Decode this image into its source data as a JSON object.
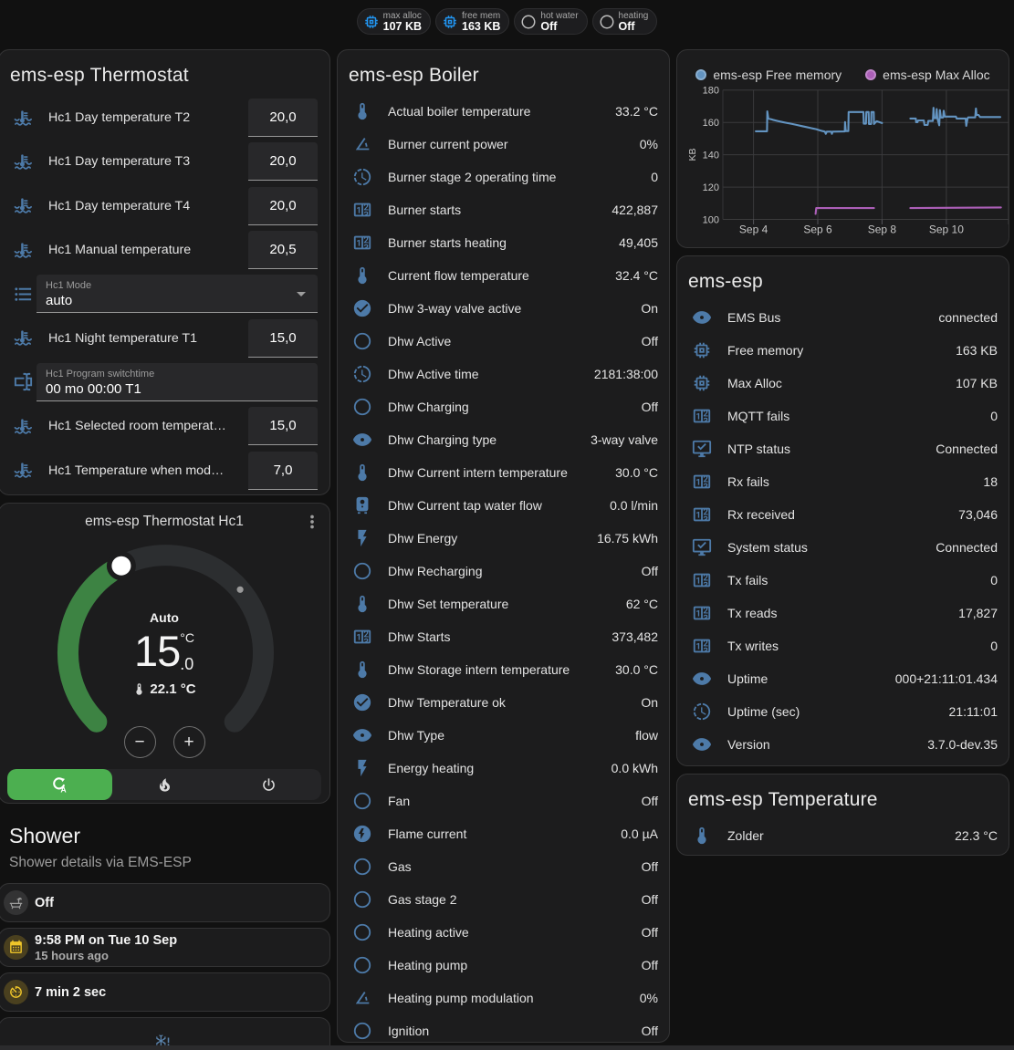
{
  "colors": {
    "page_bg": "#111111",
    "card_bg": "#1c1c1d",
    "icon_blue": "#4d7aa8",
    "badge_blue": "#2196f3",
    "amber": "#edc32b",
    "green_active": "#4caf50",
    "dial_green": "#3d8343",
    "dial_track": "#2c2e30",
    "line_blue": "#6394c1",
    "line_purple": "#ac5fb8"
  },
  "badges": [
    {
      "icon": "memory",
      "icon_color": "#2196f3",
      "label": "max alloc",
      "value": "107 KB"
    },
    {
      "icon": "memory",
      "icon_color": "#2196f3",
      "label": "free mem",
      "value": "163 KB"
    },
    {
      "icon": "circle-outline",
      "icon_color": "#bdbdbd",
      "label": "hot water",
      "value": "Off"
    },
    {
      "icon": "circle-outline",
      "icon_color": "#bdbdbd",
      "label": "heating",
      "value": "Off"
    }
  ],
  "thermostat_card": {
    "title": "ems-esp Thermostat",
    "rows": [
      {
        "type": "number",
        "icon": "thermometer-water",
        "name": "Hc1 Day temperature T2",
        "value": "20,0"
      },
      {
        "type": "number",
        "icon": "thermometer-water",
        "name": "Hc1 Day temperature T3",
        "value": "20,0"
      },
      {
        "type": "number",
        "icon": "thermometer-water",
        "name": "Hc1 Day temperature T4",
        "value": "20,0"
      },
      {
        "type": "number",
        "icon": "thermometer-water",
        "name": "Hc1 Manual temperature",
        "value": "20,5"
      },
      {
        "type": "select",
        "icon": "format-list-bulleted",
        "label": "Hc1 Mode",
        "value": "auto"
      },
      {
        "type": "number",
        "icon": "thermometer-water",
        "name": "Hc1 Night temperature T1",
        "value": "15,0"
      },
      {
        "type": "text",
        "icon": "form-textbox",
        "label": "Hc1 Program switchtime",
        "value": "00 mo 00:00 T1"
      },
      {
        "type": "number",
        "icon": "thermometer-water",
        "name": "Hc1 Selected room temperat…",
        "value": "15,0"
      },
      {
        "type": "number",
        "icon": "thermometer-water",
        "name": "Hc1 Temperature when mod…",
        "value": "7,0"
      }
    ]
  },
  "dial_card": {
    "title": "ems-esp Thermostat Hc1",
    "mode_label": "Auto",
    "target_int": "15",
    "target_frac": ".0",
    "unit": "°C",
    "current_label": "22.1 °C",
    "min": 5,
    "max": 30,
    "target": 15,
    "current": 22.1,
    "modes": [
      {
        "icon": "refresh-auto",
        "name": "auto",
        "active": true
      },
      {
        "icon": "fire",
        "name": "heat",
        "active": false
      },
      {
        "icon": "power",
        "name": "off",
        "active": false
      }
    ],
    "minus_label": "−",
    "plus_label": "+"
  },
  "shower_section": {
    "heading": "Shower",
    "subheading": "Shower details via EMS-ESP",
    "tiles": [
      {
        "icon": "bathtub",
        "icon_color": "#9e9e9e",
        "icon_bg": "rgba(158,158,158,0.18)",
        "primary": "Off"
      },
      {
        "icon": "calendar",
        "icon_color": "#f0c62a",
        "icon_bg": "rgba(240,198,42,0.22)",
        "primary": "9:58 PM on Tue 10 Sep",
        "secondary": "15 hours ago"
      },
      {
        "icon": "av-timer",
        "icon_color": "#f0c62a",
        "icon_bg": "rgba(240,198,42,0.22)",
        "primary": "7 min 2 sec"
      },
      {
        "icon": "snowflake-alert",
        "icon_color": "#5b84ad",
        "centered": true
      }
    ]
  },
  "boiler_card": {
    "title": "ems-esp Boiler",
    "rows": [
      {
        "icon": "thermometer",
        "name": "Actual boiler temperature",
        "value": "33.2 °C"
      },
      {
        "icon": "angle-acute",
        "name": "Burner current power",
        "value": "0%"
      },
      {
        "icon": "progress-clock",
        "name": "Burner stage 2 operating time",
        "value": "0"
      },
      {
        "icon": "counter",
        "name": "Burner starts",
        "value": "422,887"
      },
      {
        "icon": "counter",
        "name": "Burner starts heating",
        "value": "49,405"
      },
      {
        "icon": "thermometer",
        "name": "Current flow temperature",
        "value": "32.4 °C"
      },
      {
        "icon": "check-circle",
        "name": "Dhw 3-way valve active",
        "value": "On"
      },
      {
        "icon": "circle-outline",
        "name": "Dhw Active",
        "value": "Off"
      },
      {
        "icon": "progress-clock",
        "name": "Dhw Active time",
        "value": "2181:38:00"
      },
      {
        "icon": "circle-outline",
        "name": "Dhw Charging",
        "value": "Off"
      },
      {
        "icon": "eye",
        "name": "Dhw Charging type",
        "value": "3-way valve"
      },
      {
        "icon": "thermometer",
        "name": "Dhw Current intern temperature",
        "value": "30.0 °C"
      },
      {
        "icon": "water-boiler",
        "name": "Dhw Current tap water flow",
        "value": "0.0 l/min"
      },
      {
        "icon": "flash",
        "name": "Dhw Energy",
        "value": "16.75 kWh"
      },
      {
        "icon": "circle-outline",
        "name": "Dhw Recharging",
        "value": "Off"
      },
      {
        "icon": "thermometer",
        "name": "Dhw Set temperature",
        "value": "62 °C"
      },
      {
        "icon": "counter",
        "name": "Dhw Starts",
        "value": "373,482"
      },
      {
        "icon": "thermometer",
        "name": "Dhw Storage intern temperature",
        "value": "30.0 °C"
      },
      {
        "icon": "check-circle",
        "name": "Dhw Temperature ok",
        "value": "On"
      },
      {
        "icon": "eye",
        "name": "Dhw Type",
        "value": "flow"
      },
      {
        "icon": "flash",
        "name": "Energy heating",
        "value": "0.0 kWh"
      },
      {
        "icon": "circle-outline",
        "name": "Fan",
        "value": "Off"
      },
      {
        "icon": "flash-circle",
        "name": "Flame current",
        "value": "0.0 µA"
      },
      {
        "icon": "circle-outline",
        "name": "Gas",
        "value": "Off"
      },
      {
        "icon": "circle-outline",
        "name": "Gas stage 2",
        "value": "Off"
      },
      {
        "icon": "circle-outline",
        "name": "Heating active",
        "value": "Off"
      },
      {
        "icon": "circle-outline",
        "name": "Heating pump",
        "value": "Off"
      },
      {
        "icon": "angle-acute",
        "name": "Heating pump modulation",
        "value": "0%"
      },
      {
        "icon": "circle-outline",
        "name": "Ignition",
        "value": "Off"
      }
    ]
  },
  "system_card": {
    "title": "ems-esp",
    "rows": [
      {
        "icon": "eye",
        "name": "EMS Bus",
        "value": "connected"
      },
      {
        "icon": "memory",
        "name": "Free memory",
        "value": "163 KB"
      },
      {
        "icon": "memory",
        "name": "Max Alloc",
        "value": "107 KB"
      },
      {
        "icon": "counter",
        "name": "MQTT fails",
        "value": "0"
      },
      {
        "icon": "monitor-check",
        "name": "NTP status",
        "value": "Connected"
      },
      {
        "icon": "counter",
        "name": "Rx fails",
        "value": "18"
      },
      {
        "icon": "counter",
        "name": "Rx received",
        "value": "73,046"
      },
      {
        "icon": "monitor-check",
        "name": "System status",
        "value": "Connected"
      },
      {
        "icon": "counter",
        "name": "Tx fails",
        "value": "0"
      },
      {
        "icon": "counter",
        "name": "Tx reads",
        "value": "17,827"
      },
      {
        "icon": "counter",
        "name": "Tx writes",
        "value": "0"
      },
      {
        "icon": "eye",
        "name": "Uptime",
        "value": "000+21:11:01.434"
      },
      {
        "icon": "progress-clock",
        "name": "Uptime (sec)",
        "value": "21:11:01"
      },
      {
        "icon": "eye",
        "name": "Version",
        "value": "3.7.0-dev.35"
      }
    ]
  },
  "temperature_card": {
    "title": "ems-esp Temperature",
    "rows": [
      {
        "icon": "thermometer",
        "name": "Zolder",
        "value": "22.3 °C"
      }
    ]
  },
  "chart_data": {
    "type": "line",
    "title": "",
    "xlabel": "",
    "ylabel": "KB",
    "xlim": [
      3.0,
      11.9
    ],
    "ylim": [
      100,
      180
    ],
    "grid": true,
    "legend_position": "top",
    "xticks": [
      {
        "x": 4,
        "label": "Sep 4"
      },
      {
        "x": 6,
        "label": "Sep 6"
      },
      {
        "x": 8,
        "label": "Sep 8"
      },
      {
        "x": 10,
        "label": "Sep 10"
      }
    ],
    "yticks": [
      100,
      120,
      140,
      160,
      180
    ],
    "series": [
      {
        "name": "ems-esp Free memory",
        "color": "#6394c1",
        "points": [
          [
            4.07,
            154.5
          ],
          [
            4.42,
            154.5
          ],
          [
            4.43,
            166.8
          ],
          [
            4.46,
            162.4
          ],
          [
            4.6,
            161.6
          ],
          [
            4.75,
            160.9
          ],
          [
            4.9,
            160.2
          ],
          [
            5.05,
            159.6
          ],
          [
            5.2,
            159.0
          ],
          [
            5.35,
            158.4
          ],
          [
            5.5,
            157.7
          ],
          [
            5.65,
            157.1
          ],
          [
            5.8,
            156.4
          ],
          [
            5.95,
            155.8
          ],
          [
            6.05,
            155.2
          ],
          [
            6.15,
            154.6
          ],
          [
            6.22,
            154.3
          ],
          [
            6.25,
            152.9
          ],
          [
            6.28,
            154.3
          ],
          [
            6.42,
            154.3
          ],
          [
            6.44,
            152.9
          ],
          [
            6.46,
            154.3
          ],
          [
            6.84,
            154.4
          ],
          [
            6.85,
            160.2
          ],
          [
            6.87,
            154.6
          ],
          [
            6.95,
            154.6
          ],
          [
            6.96,
            166.4
          ],
          [
            7.42,
            166.4
          ],
          [
            7.43,
            159.2
          ],
          [
            7.5,
            159.2
          ],
          [
            7.51,
            166.4
          ],
          [
            7.58,
            166.4
          ],
          [
            7.59,
            159.0
          ],
          [
            7.66,
            159.0
          ],
          [
            7.67,
            166.4
          ],
          [
            7.74,
            166.4
          ],
          [
            7.75,
            159.0
          ],
          [
            7.83,
            160.7
          ],
          [
            8.0,
            159.6
          ],
          null,
          [
            8.88,
            162.4
          ],
          [
            9.05,
            162.4
          ],
          [
            9.06,
            160.1
          ],
          [
            9.1,
            160.1
          ],
          [
            9.12,
            161.2
          ],
          [
            9.3,
            161.2
          ],
          [
            9.32,
            158.4
          ],
          [
            9.42,
            158.4
          ],
          [
            9.44,
            160.9
          ],
          [
            9.58,
            160.9
          ],
          [
            9.6,
            169.0
          ],
          [
            9.62,
            162.6
          ],
          [
            9.68,
            162.6
          ],
          [
            9.7,
            168.2
          ],
          [
            9.72,
            162.6
          ],
          [
            9.78,
            158.2
          ],
          [
            9.8,
            167.6
          ],
          [
            9.83,
            163.0
          ],
          [
            9.9,
            163.0
          ],
          [
            9.92,
            167.2
          ],
          [
            9.95,
            163.6
          ],
          [
            10.3,
            163.6
          ],
          [
            10.32,
            162.4
          ],
          [
            10.6,
            162.4
          ],
          [
            10.62,
            157.9
          ],
          [
            10.66,
            162.4
          ],
          [
            10.68,
            163.1
          ],
          [
            10.9,
            163.1
          ],
          [
            10.92,
            168.6
          ],
          [
            10.94,
            164.6
          ],
          [
            11.0,
            164.6
          ],
          [
            11.05,
            163.3
          ],
          [
            11.68,
            163.3
          ]
        ]
      },
      {
        "name": "ems-esp Max Alloc",
        "color": "#ac5fb8",
        "points": [
          [
            5.93,
            103.4
          ],
          [
            5.95,
            107.0
          ],
          [
            7.75,
            107.0
          ],
          null,
          [
            8.88,
            107.0
          ],
          [
            10.5,
            107.2
          ],
          [
            11.7,
            107.4
          ]
        ]
      }
    ]
  }
}
